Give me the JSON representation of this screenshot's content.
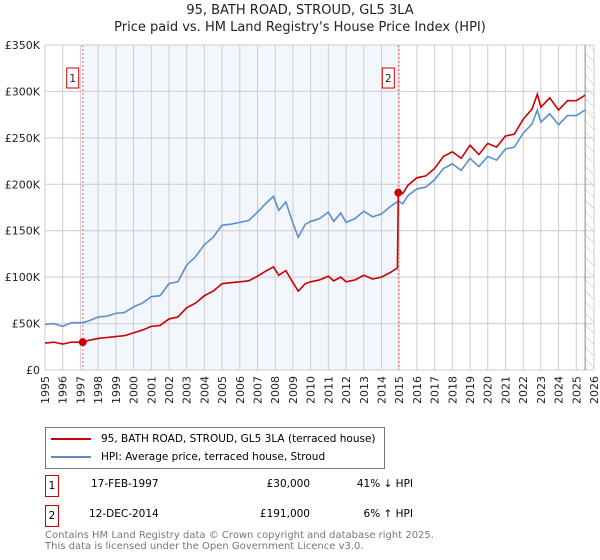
{
  "chart_data": {
    "type": "line",
    "title": "95, BATH ROAD, STROUD, GL5 3LA",
    "subtitle": "Price paid vs. HM Land Registry's House Price Index (HPI)",
    "xlim": [
      1995,
      2026
    ],
    "ylim": [
      0,
      350000
    ],
    "x_ticks": [
      "1995",
      "1996",
      "1997",
      "1998",
      "1999",
      "2000",
      "2001",
      "2002",
      "2003",
      "2004",
      "2005",
      "2006",
      "2007",
      "2008",
      "2009",
      "2010",
      "2011",
      "2012",
      "2013",
      "2014",
      "2015",
      "2016",
      "2017",
      "2018",
      "2019",
      "2020",
      "2021",
      "2022",
      "2023",
      "2024",
      "2025",
      "2026"
    ],
    "y_ticks": [
      {
        "v": 0,
        "label": "£0"
      },
      {
        "v": 50000,
        "label": "£50K"
      },
      {
        "v": 100000,
        "label": "£100K"
      },
      {
        "v": 150000,
        "label": "£150K"
      },
      {
        "v": 200000,
        "label": "£200K"
      },
      {
        "v": 250000,
        "label": "£250K"
      },
      {
        "v": 300000,
        "label": "£300K"
      },
      {
        "v": 350000,
        "label": "£350K"
      }
    ],
    "grid": true,
    "shaded_ownership_period": [
      1997.13,
      2014.95
    ],
    "forecast_hatch_from": 2025.5,
    "series": [
      {
        "name": "95, BATH ROAD, STROUD, GL5 3LA (terraced house)",
        "color": "#cc0000",
        "x": [
          1995,
          1995.5,
          1996,
          1996.5,
          1997.13,
          1997.5,
          1998,
          1998.5,
          1999,
          1999.5,
          2000,
          2000.5,
          2001,
          2001.5,
          2002,
          2002.5,
          2003,
          2003.5,
          2004,
          2004.5,
          2005,
          2005.5,
          2006,
          2006.5,
          2007,
          2007.5,
          2007.9,
          2008.2,
          2008.6,
          2009,
          2009.3,
          2009.7,
          2010,
          2010.5,
          2011,
          2011.3,
          2011.7,
          2012,
          2012.5,
          2013,
          2013.5,
          2014,
          2014.5,
          2014.9,
          2014.95,
          2015.2,
          2015.5,
          2016,
          2016.5,
          2017,
          2017.5,
          2018,
          2018.5,
          2019,
          2019.5,
          2020,
          2020.5,
          2021,
          2021.5,
          2022,
          2022.5,
          2022.8,
          2023,
          2023.5,
          2024,
          2024.5,
          2025,
          2025.5
        ],
        "y": [
          29,
          30,
          28,
          30,
          30,
          32,
          34,
          35,
          36,
          37,
          40,
          43,
          47,
          48,
          55,
          57,
          67,
          72,
          80,
          85,
          93,
          94,
          95,
          96,
          101,
          107,
          111,
          102,
          107,
          94,
          85,
          93,
          95,
          97,
          101,
          96,
          100,
          95,
          97,
          102,
          98,
          100,
          105,
          110,
          191,
          190,
          199,
          207,
          209,
          217,
          230,
          235,
          228,
          242,
          232,
          244,
          240,
          252,
          254,
          270,
          281,
          297,
          283,
          293,
          280,
          290,
          290,
          296
        ]
      },
      {
        "name": "HPI: Average price, terraced house, Stroud",
        "color": "#5b8fd0",
        "x": [
          1995,
          1995.5,
          1996,
          1996.5,
          1997.13,
          1997.5,
          1998,
          1998.5,
          1999,
          1999.5,
          2000,
          2000.5,
          2001,
          2001.5,
          2002,
          2002.5,
          2003,
          2003.5,
          2004,
          2004.5,
          2005,
          2005.5,
          2006,
          2006.5,
          2007,
          2007.5,
          2007.9,
          2008.2,
          2008.6,
          2009,
          2009.3,
          2009.7,
          2010,
          2010.5,
          2011,
          2011.3,
          2011.7,
          2012,
          2012.5,
          2013,
          2013.5,
          2014,
          2014.5,
          2014.95,
          2015.2,
          2015.5,
          2016,
          2016.5,
          2017,
          2017.5,
          2018,
          2018.5,
          2019,
          2019.5,
          2020,
          2020.5,
          2021,
          2021.5,
          2022,
          2022.5,
          2022.8,
          2023,
          2023.5,
          2024,
          2024.5,
          2025,
          2025.5
        ],
        "y": [
          49,
          50,
          47,
          51,
          51,
          53,
          57,
          58,
          61,
          62,
          68,
          72,
          79,
          80,
          93,
          95,
          113,
          122,
          135,
          143,
          156,
          157,
          159,
          161,
          170,
          180,
          187,
          172,
          181,
          158,
          143,
          157,
          160,
          163,
          170,
          160,
          169,
          159,
          163,
          171,
          165,
          168,
          176,
          182,
          179,
          188,
          195,
          197,
          205,
          217,
          222,
          215,
          228,
          219,
          230,
          226,
          238,
          240,
          255,
          265,
          280,
          267,
          276,
          264,
          274,
          274,
          280
        ]
      }
    ],
    "y_units_in_series": "thousands GBP",
    "sales": [
      {
        "id": "1",
        "x": 1997.13,
        "price": 30000,
        "date": "17-FEB-1997",
        "price_label": "£30,000",
        "hpi": "41% ↓ HPI"
      },
      {
        "id": "2",
        "x": 2014.95,
        "price": 191000,
        "date": "12-DEC-2014",
        "price_label": "£191,000",
        "hpi": "6% ↑ HPI"
      }
    ],
    "legend": {
      "placement": "below"
    }
  },
  "footer": {
    "line1": "Contains HM Land Registry data © Crown copyright and database right 2025.",
    "line2": "This data is licensed under the Open Government Licence v3.0."
  }
}
